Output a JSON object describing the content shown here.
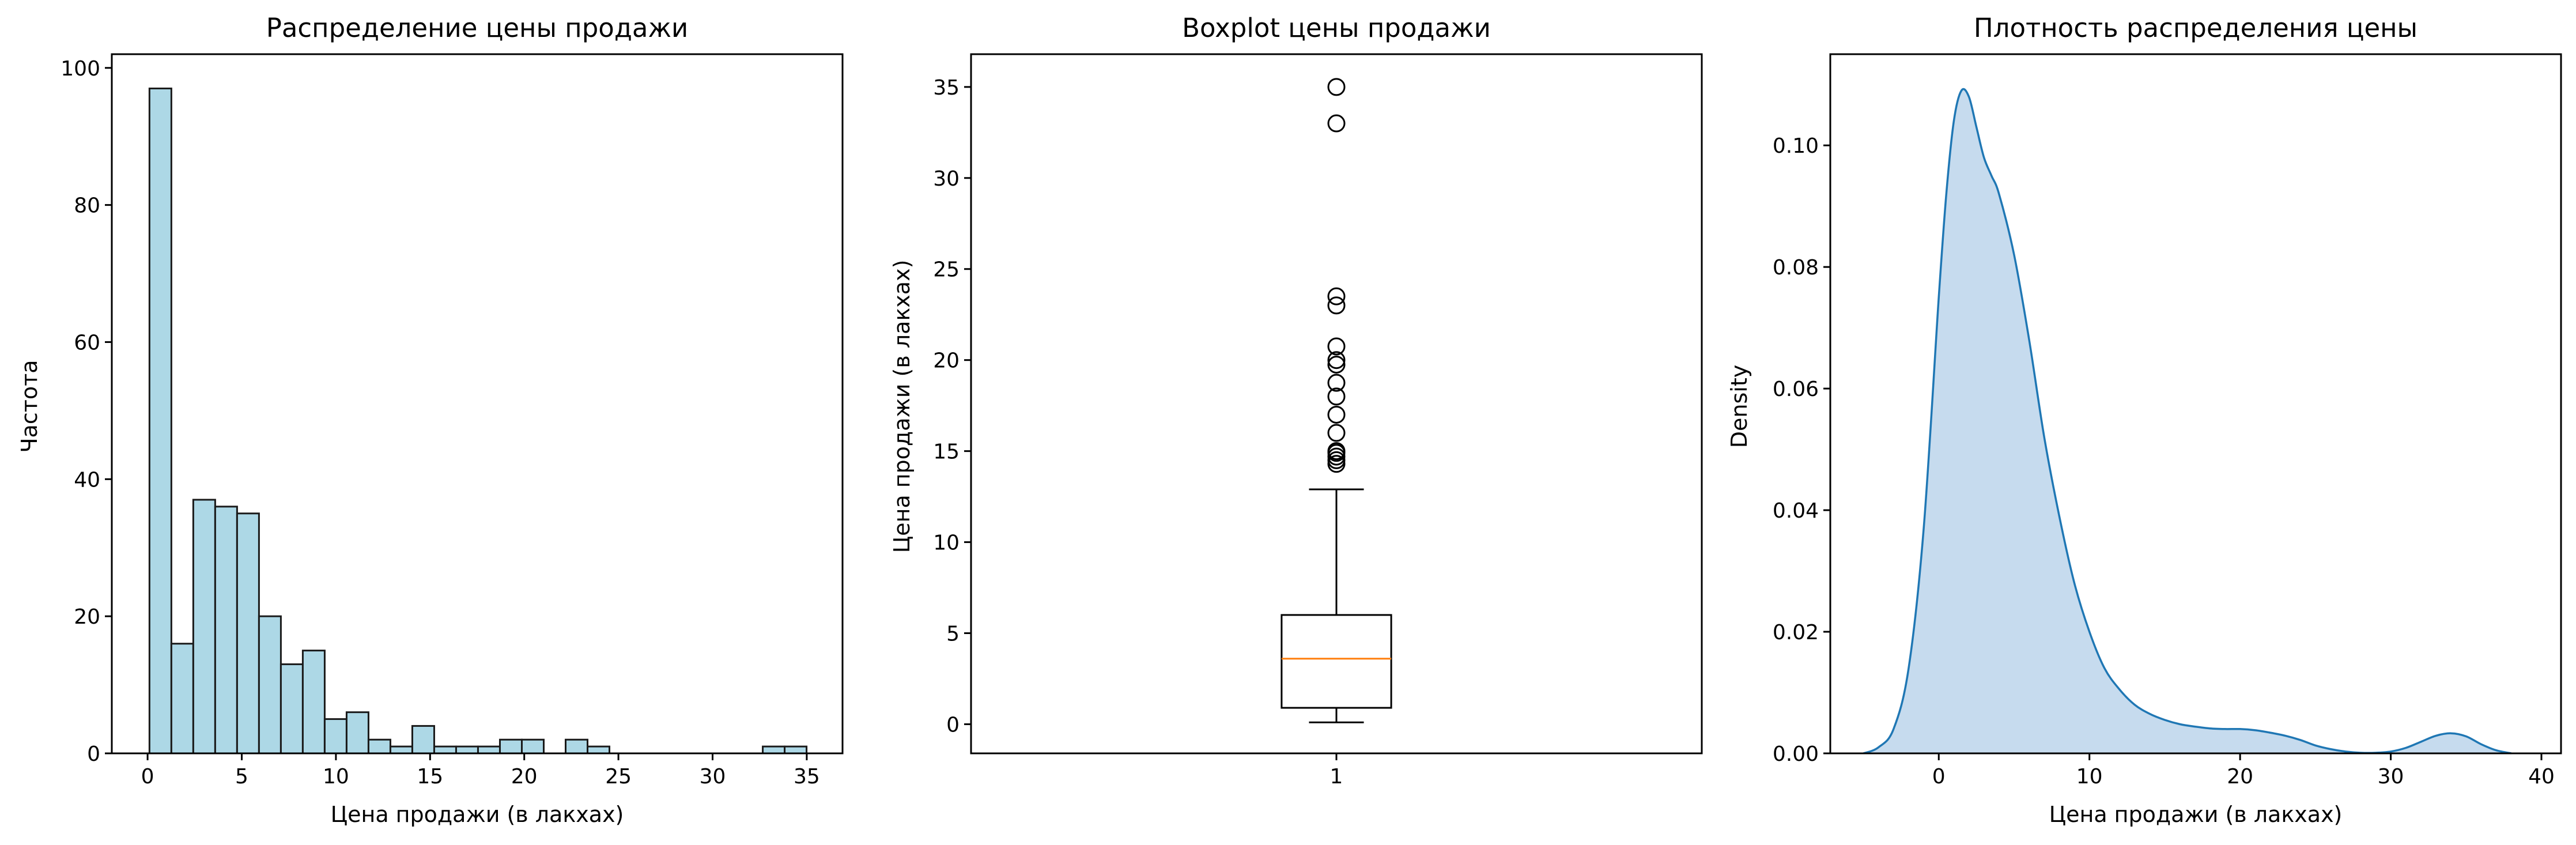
{
  "chart_data": [
    {
      "type": "bar",
      "title": "Распределение цены продажи",
      "xlabel": "Цена продажи (в лакхах)",
      "ylabel": "Частота",
      "xlim": [
        -1.9,
        36.9
      ],
      "ylim": [
        0,
        102
      ],
      "xticks": [
        0,
        5,
        10,
        15,
        20,
        25,
        30,
        35
      ],
      "yticks": [
        0,
        20,
        40,
        60,
        80,
        100
      ],
      "bar_color": "#add8e6",
      "edge_color": "#1a1a1a",
      "bin_start": 0.1,
      "bin_width": 1.163,
      "values": [
        97,
        16,
        37,
        36,
        35,
        20,
        13,
        15,
        5,
        6,
        2,
        1,
        4,
        1,
        1,
        1,
        2,
        2,
        0,
        2,
        1,
        0,
        0,
        0,
        0,
        0,
        0,
        0,
        1,
        1
      ],
      "grid": false
    },
    {
      "type": "box",
      "title": "Boxplot цены продажи",
      "xlabel": "",
      "ylabel": "Цена продажи (в лакхах)",
      "xticks": [
        "1"
      ],
      "xlim": [
        0.5,
        1.5
      ],
      "ylim": [
        -1.6,
        36.8
      ],
      "yticks": [
        0,
        5,
        10,
        15,
        20,
        25,
        30,
        35
      ],
      "whisker_low": 0.1,
      "q1": 0.9,
      "median": 3.6,
      "q3": 6.0,
      "whisker_high": 12.9,
      "outliers": [
        14.3,
        14.5,
        14.7,
        14.9,
        15.0,
        16.0,
        17.0,
        18.0,
        18.75,
        19.75,
        20.0,
        20.75,
        23.0,
        23.5,
        33.0,
        35.0
      ],
      "median_color": "#ff7f0e",
      "grid": false
    },
    {
      "type": "area",
      "title": "Плотность распределения цены",
      "xlabel": "Цена продажи (в лакхах)",
      "ylabel": "Density",
      "xlim": [
        -7.2,
        41.3
      ],
      "ylim": [
        0,
        0.115
      ],
      "xticks": [
        0,
        10,
        20,
        30,
        40
      ],
      "yticks": [
        "0.00",
        "0.02",
        "0.04",
        "0.06",
        "0.08",
        "0.10"
      ],
      "line_color": "#1f77b4",
      "fill_color": "#c6dbee",
      "x": [
        -5,
        -4,
        -3,
        -2,
        -1,
        0,
        0.5,
        1,
        1.5,
        2,
        2.5,
        3,
        3.5,
        4,
        5,
        6,
        7,
        8,
        9,
        10,
        11,
        12,
        13,
        14,
        15,
        16,
        17,
        18,
        19,
        20,
        21,
        22,
        23,
        24,
        25,
        26,
        27,
        28,
        29,
        30,
        31,
        32,
        33,
        34,
        35,
        36,
        37,
        38
      ],
      "y": [
        0.0,
        0.001,
        0.004,
        0.014,
        0.037,
        0.075,
        0.092,
        0.104,
        0.109,
        0.108,
        0.103,
        0.098,
        0.095,
        0.092,
        0.082,
        0.068,
        0.052,
        0.039,
        0.028,
        0.02,
        0.014,
        0.0105,
        0.008,
        0.0065,
        0.0055,
        0.0048,
        0.0044,
        0.0041,
        0.004,
        0.004,
        0.0038,
        0.0034,
        0.0029,
        0.0022,
        0.0013,
        0.0007,
        0.0003,
        0.0001,
        0.0001,
        0.0003,
        0.0009,
        0.0019,
        0.0029,
        0.0033,
        0.0028,
        0.0015,
        0.0005,
        0.0
      ]
    }
  ]
}
